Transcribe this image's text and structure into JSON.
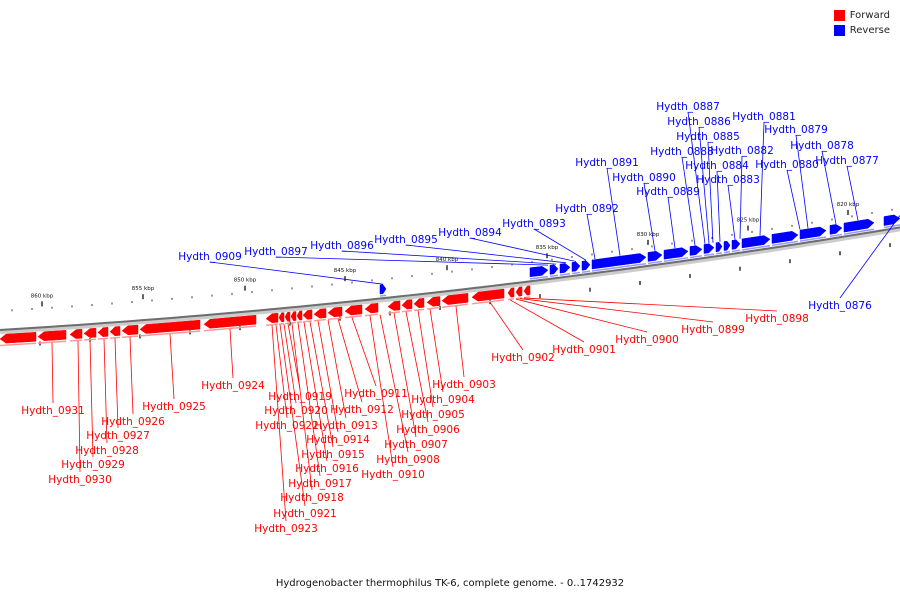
{
  "legend": {
    "forward_label": "Forward",
    "reverse_label": "Reverse",
    "forward_color": "#ff0000",
    "reverse_color": "#0000ff"
  },
  "footer": {
    "caption": "Hydrogenobacter thermophilus TK-6, complete genome. - 0..1742932"
  },
  "scale_ticks": [
    "860 kbp",
    "855 kbp",
    "850 kbp",
    "845 kbp",
    "840 kbp",
    "835 kbp",
    "830 kbp",
    "825 kbp",
    "820 kbp"
  ],
  "reverse_genes": [
    "Hydth_0909",
    "Hydth_0897",
    "Hydth_0896",
    "Hydth_0895",
    "Hydth_0894",
    "Hydth_0893",
    "Hydth_0892",
    "Hydth_0891",
    "Hydth_0890",
    "Hydth_0889",
    "Hydth_0888",
    "Hydth_0887",
    "Hydth_0886",
    "Hydth_0885",
    "Hydth_0884",
    "Hydth_0883",
    "Hydth_0882",
    "Hydth_0881",
    "Hydth_0880",
    "Hydth_0879",
    "Hydth_0878",
    "Hydth_0877",
    "Hydth_0876"
  ],
  "forward_genes": [
    "Hydth_0931",
    "Hydth_0930",
    "Hydth_0929",
    "Hydth_0928",
    "Hydth_0927",
    "Hydth_0926",
    "Hydth_0925",
    "Hydth_0924",
    "Hydth_0923",
    "Hydth_0922",
    "Hydth_0921",
    "Hydth_0920",
    "Hydth_0919",
    "Hydth_0918",
    "Hydth_0917",
    "Hydth_0916",
    "Hydth_0915",
    "Hydth_0914",
    "Hydth_0913",
    "Hydth_0912",
    "Hydth_0911",
    "Hydth_0910",
    "Hydth_0908",
    "Hydth_0907",
    "Hydth_0906",
    "Hydth_0905",
    "Hydth_0904",
    "Hydth_0903",
    "Hydth_0902",
    "Hydth_0901",
    "Hydth_0900",
    "Hydth_0899",
    "Hydth_0898"
  ]
}
